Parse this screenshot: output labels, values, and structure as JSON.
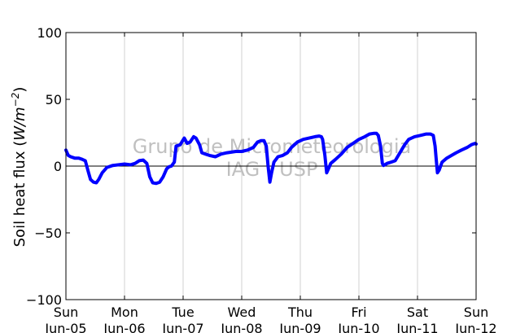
{
  "chart_data": {
    "type": "line",
    "ylabel": "Soil heat flux (W/m⁻²)",
    "ylabel_parts": {
      "prefix": "Soil heat flux (",
      "unit_main": "W/m",
      "unit_sup": "−2",
      "suffix": ")"
    },
    "xlabel": "",
    "ylim": [
      -100,
      100
    ],
    "yticks": [
      100,
      50,
      0,
      -50,
      -100
    ],
    "ytick_labels": [
      "100",
      "50",
      "0",
      "−50",
      "−100"
    ],
    "xlim": [
      0,
      7
    ],
    "xticks": [
      {
        "x": 0,
        "day": "Sun",
        "date": "Jun-05"
      },
      {
        "x": 1,
        "day": "Mon",
        "date": "Jun-06"
      },
      {
        "x": 2,
        "day": "Tue",
        "date": "Jun-07"
      },
      {
        "x": 3,
        "day": "Wed",
        "date": "Jun-08"
      },
      {
        "x": 4,
        "day": "Thu",
        "date": "Jun-09"
      },
      {
        "x": 5,
        "day": "Fri",
        "date": "Jun-10"
      },
      {
        "x": 6,
        "day": "Sat",
        "date": "Jun-11"
      },
      {
        "x": 7,
        "day": "Sun",
        "date": "Jun-12"
      }
    ],
    "grid": "vertical",
    "zero_line": 0,
    "series": [
      {
        "color": "#0000ff",
        "points": [
          [
            0.0,
            12
          ],
          [
            0.02,
            10
          ],
          [
            0.04,
            8
          ],
          [
            0.08,
            7
          ],
          [
            0.15,
            6
          ],
          [
            0.22,
            6
          ],
          [
            0.28,
            5
          ],
          [
            0.33,
            4
          ],
          [
            0.38,
            -4
          ],
          [
            0.42,
            -10
          ],
          [
            0.47,
            -12
          ],
          [
            0.52,
            -12.5
          ],
          [
            0.56,
            -10
          ],
          [
            0.62,
            -5
          ],
          [
            0.7,
            -1
          ],
          [
            0.8,
            0.5
          ],
          [
            0.9,
            1
          ],
          [
            1.0,
            1.5
          ],
          [
            1.1,
            1
          ],
          [
            1.18,
            2
          ],
          [
            1.25,
            4
          ],
          [
            1.32,
            4.5
          ],
          [
            1.38,
            2
          ],
          [
            1.43,
            -8
          ],
          [
            1.48,
            -12.5
          ],
          [
            1.54,
            -13
          ],
          [
            1.6,
            -12
          ],
          [
            1.66,
            -8
          ],
          [
            1.72,
            -2
          ],
          [
            1.76,
            -0.5
          ],
          [
            1.8,
            0
          ],
          [
            1.85,
            3
          ],
          [
            1.88,
            15
          ],
          [
            1.95,
            16
          ],
          [
            2.02,
            21
          ],
          [
            2.07,
            17
          ],
          [
            2.12,
            18
          ],
          [
            2.18,
            22
          ],
          [
            2.22,
            21
          ],
          [
            2.28,
            16
          ],
          [
            2.32,
            10
          ],
          [
            2.38,
            9
          ],
          [
            2.45,
            8
          ],
          [
            2.55,
            7
          ],
          [
            2.65,
            9
          ],
          [
            2.75,
            10
          ],
          [
            2.9,
            11
          ],
          [
            3.0,
            11
          ],
          [
            3.1,
            12
          ],
          [
            3.2,
            14
          ],
          [
            3.27,
            18
          ],
          [
            3.33,
            19
          ],
          [
            3.38,
            19
          ],
          [
            3.42,
            15
          ],
          [
            3.45,
            0
          ],
          [
            3.48,
            -12
          ],
          [
            3.51,
            -5
          ],
          [
            3.55,
            3
          ],
          [
            3.62,
            7
          ],
          [
            3.7,
            8
          ],
          [
            3.78,
            10
          ],
          [
            3.85,
            14
          ],
          [
            3.95,
            18
          ],
          [
            4.05,
            20
          ],
          [
            4.15,
            21
          ],
          [
            4.25,
            22
          ],
          [
            4.32,
            22.5
          ],
          [
            4.36,
            22
          ],
          [
            4.38,
            20
          ],
          [
            4.42,
            8
          ],
          [
            4.45,
            -5
          ],
          [
            4.48,
            -2
          ],
          [
            4.52,
            2
          ],
          [
            4.6,
            5
          ],
          [
            4.7,
            9
          ],
          [
            4.8,
            14
          ],
          [
            4.9,
            17
          ],
          [
            5.0,
            20
          ],
          [
            5.1,
            22
          ],
          [
            5.18,
            24
          ],
          [
            5.25,
            24.5
          ],
          [
            5.3,
            24.5
          ],
          [
            5.33,
            23
          ],
          [
            5.37,
            15
          ],
          [
            5.4,
            2
          ],
          [
            5.42,
            0.5
          ],
          [
            5.48,
            2
          ],
          [
            5.55,
            3
          ],
          [
            5.62,
            4
          ],
          [
            5.7,
            10
          ],
          [
            5.78,
            16
          ],
          [
            5.85,
            20
          ],
          [
            5.95,
            22
          ],
          [
            6.05,
            23
          ],
          [
            6.15,
            24
          ],
          [
            6.22,
            24
          ],
          [
            6.27,
            23
          ],
          [
            6.3,
            15
          ],
          [
            6.32,
            5
          ],
          [
            6.34,
            -5
          ],
          [
            6.37,
            -3
          ],
          [
            6.42,
            3
          ],
          [
            6.5,
            6
          ],
          [
            6.58,
            8
          ],
          [
            6.66,
            10
          ],
          [
            6.75,
            12
          ],
          [
            6.85,
            14
          ],
          [
            6.92,
            16
          ],
          [
            6.98,
            17
          ],
          [
            7.0,
            16.5
          ]
        ]
      }
    ],
    "annotations": [
      "Grupo de Micrometeorologia",
      "IAG - USP"
    ]
  }
}
